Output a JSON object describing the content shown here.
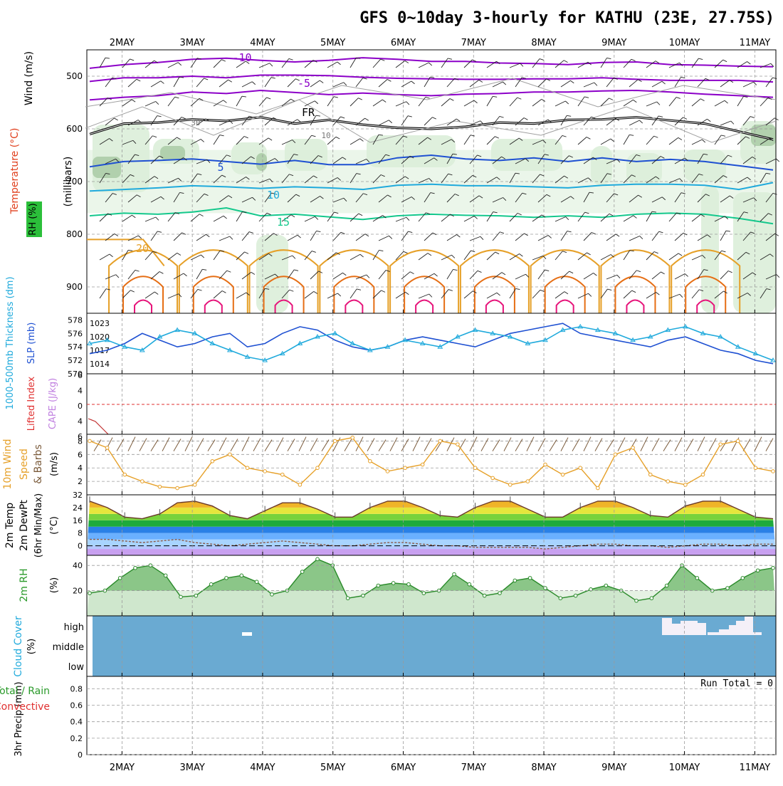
{
  "title": "GFS 0~10day 3-hourly for KATHU (23E, 27.75S)",
  "x_axis": {
    "labels": [
      "2MAY",
      "3MAY",
      "4MAY",
      "5MAY",
      "6MAY",
      "7MAY",
      "8MAY",
      "9MAY",
      "10MAY",
      "11MAY"
    ],
    "day_start": 1.5,
    "day_end": 11.3
  },
  "colors": {
    "purple": "#8c00c8",
    "blue": "#1e50d2",
    "cyan": "#20aadc",
    "teal": "#14c88c",
    "orange": "#e6a028",
    "darkorange": "#e66e14",
    "magenta": "#e6147a",
    "rhfill": "#dbeed9",
    "rhdark": "#9ec39a",
    "cloud": "#6aaad2"
  },
  "chart_data": [
    {
      "type": "contour",
      "panel": "upper-air",
      "ylabel_parts": [
        "Wind (m/s)",
        "Temperature (°C)",
        "RH (%)"
      ],
      "ylabel2": "(millibars)",
      "y_ticks": [
        500,
        600,
        700,
        800,
        900
      ],
      "ylim": [
        1000,
        450
      ],
      "contour_labels": [
        "-10",
        "-5",
        "FR",
        "5",
        "10",
        "15",
        "20",
        "30",
        "10"
      ],
      "isotherms": [
        {
          "label": "-10",
          "p": [
            485,
            478,
            474,
            468,
            466,
            470,
            473,
            470,
            465,
            468,
            472,
            472,
            475,
            476,
            478,
            474,
            473,
            478,
            479,
            481,
            482
          ]
        },
        {
          "label": "-5",
          "p": [
            510,
            503,
            503,
            500,
            503,
            498,
            498,
            499,
            502,
            504,
            505,
            506,
            506,
            505,
            505,
            503,
            506,
            508,
            508,
            508,
            511
          ]
        },
        {
          "label": "0",
          "p": [
            545,
            540,
            537,
            530,
            533,
            527,
            531,
            535,
            532,
            535,
            537,
            534,
            533,
            530,
            530,
            528,
            527,
            530,
            534,
            537,
            540
          ]
        },
        {
          "label": "FR",
          "p": [
            610,
            590,
            588,
            582,
            585,
            578,
            590,
            583,
            592,
            598,
            600,
            596,
            588,
            590,
            583,
            582,
            578,
            584,
            590,
            605,
            620
          ]
        },
        {
          "label": "5",
          "p": [
            672,
            662,
            660,
            657,
            662,
            667,
            660,
            668,
            668,
            655,
            650,
            657,
            660,
            655,
            662,
            655,
            662,
            658,
            662,
            670,
            678
          ]
        },
        {
          "label": "10",
          "p": [
            718,
            715,
            712,
            708,
            710,
            713,
            710,
            712,
            715,
            707,
            705,
            708,
            708,
            710,
            712,
            707,
            705,
            705,
            707,
            715,
            702
          ]
        },
        {
          "label": "15",
          "p": [
            765,
            760,
            762,
            758,
            750,
            765,
            762,
            767,
            772,
            765,
            762,
            764,
            765,
            768,
            765,
            768,
            762,
            760,
            762,
            770,
            780
          ]
        }
      ]
    },
    {
      "type": "line",
      "panel": "thickness-slp",
      "ylabel_left": "1000-500mb Thickness (dm)",
      "ylabel_right": "SLP (mb)",
      "y_ticks_left": [
        570,
        572,
        574,
        576,
        578
      ],
      "y_ticks_right": [
        1014,
        1017,
        1020,
        1023
      ],
      "ylim": [
        570,
        579
      ],
      "series": [
        {
          "values": [
            573,
            573.5,
            574.5,
            576,
            575,
            574,
            574.5,
            575.5,
            576,
            574,
            574.5,
            576,
            577,
            576.5,
            575,
            574,
            573.5,
            574,
            575,
            575.5,
            575,
            574.5,
            574,
            575,
            576,
            576.5,
            577,
            577.5,
            576,
            575.5,
            575,
            574.5,
            574,
            575,
            575.5,
            574.5,
            573.5,
            573,
            572,
            571.5
          ]
        },
        {
          "values": [
            574.5,
            575,
            574,
            573.5,
            575.5,
            576.5,
            576,
            574.5,
            573.5,
            572.5,
            572,
            573,
            574.5,
            575.5,
            576,
            574.5,
            573.5,
            574,
            575,
            574.5,
            574,
            575.5,
            576.5,
            576,
            575.5,
            574.5,
            575,
            576.5,
            577,
            576.5,
            576,
            575,
            575.5,
            576.5,
            577,
            576,
            575.5,
            574,
            573,
            572
          ]
        }
      ]
    },
    {
      "type": "line",
      "panel": "cape-li",
      "ylabel_parts": [
        "CAPE (J/kg)",
        "Lifted Index"
      ],
      "y_ticks": [
        "6",
        "4",
        "0",
        "4",
        "6"
      ],
      "series": [
        {
          "values": []
        }
      ]
    },
    {
      "type": "line",
      "panel": "wind10m",
      "ylabel_parts": [
        "10m Wind",
        "Speed",
        "& Barbs",
        "(m/s)"
      ],
      "y_ticks": [
        2,
        4,
        6,
        8
      ],
      "ylim": [
        0,
        9
      ],
      "series": [
        {
          "values": [
            8,
            7,
            3,
            2,
            1.2,
            1,
            1.5,
            5,
            6,
            4,
            3.5,
            3,
            1.5,
            4,
            8,
            8.5,
            5,
            3.5,
            4,
            4.5,
            8,
            7.5,
            4,
            2.5,
            1.5,
            2,
            4.5,
            3,
            4,
            1,
            6,
            7,
            3,
            2,
            1.5,
            3,
            7.5,
            8,
            4,
            3.5
          ]
        }
      ]
    },
    {
      "type": "area",
      "panel": "temp2m",
      "ylabel_parts": [
        "2m Temp",
        "2m DewPt",
        "(6hr Min/Max)",
        "(°C)"
      ],
      "y_ticks": [
        0,
        8,
        16,
        24,
        32
      ],
      "ylim": [
        -6,
        32
      ],
      "series": [
        {
          "name": "temp",
          "values": [
            28,
            24,
            18,
            17,
            20,
            27,
            28,
            25,
            19,
            17,
            22,
            27,
            27,
            23,
            18,
            18,
            24,
            28,
            28,
            24,
            19,
            18,
            24,
            28,
            28,
            23,
            18,
            18,
            24,
            28,
            28,
            24,
            19,
            18,
            25,
            28,
            28,
            23,
            18,
            17
          ]
        },
        {
          "name": "dewpt",
          "values": [
            4,
            4,
            3,
            2,
            3,
            4,
            2,
            1,
            0,
            1,
            2,
            3,
            2,
            1,
            0,
            0,
            1,
            2,
            2,
            1,
            0,
            0,
            -1,
            -1,
            -1,
            -1,
            -2,
            -1,
            0,
            1,
            1,
            0,
            0,
            -1,
            0,
            1,
            1,
            0,
            1,
            1
          ]
        }
      ]
    },
    {
      "type": "area",
      "panel": "rh2m",
      "ylabel_parts": [
        "2m RH",
        "(%)"
      ],
      "y_ticks": [
        20,
        40
      ],
      "ylim": [
        0,
        48
      ],
      "series": [
        {
          "values": [
            18,
            20,
            30,
            38,
            40,
            32,
            15,
            16,
            25,
            30,
            32,
            27,
            17,
            20,
            35,
            45,
            40,
            14,
            16,
            24,
            26,
            25,
            18,
            20,
            33,
            25,
            16,
            18,
            28,
            30,
            22,
            14,
            16,
            21,
            24,
            20,
            12,
            14,
            24,
            40,
            30,
            20,
            22,
            30,
            36,
            38
          ]
        }
      ]
    },
    {
      "type": "heatmap",
      "panel": "cloud",
      "ylabel": "Cloud Cover (%)",
      "row_labels": [
        "high",
        "middle",
        "low"
      ]
    },
    {
      "type": "bar",
      "panel": "precip",
      "ylabel_parts": [
        "Total / Rain",
        "Convective",
        "3hr Precip (mm)"
      ],
      "y_ticks": [
        "0",
        "0.2",
        "0.4",
        "0.6",
        "0.8"
      ],
      "ylim": [
        0,
        0.95
      ],
      "run_total_label": "Run Total = 0",
      "values": []
    }
  ]
}
